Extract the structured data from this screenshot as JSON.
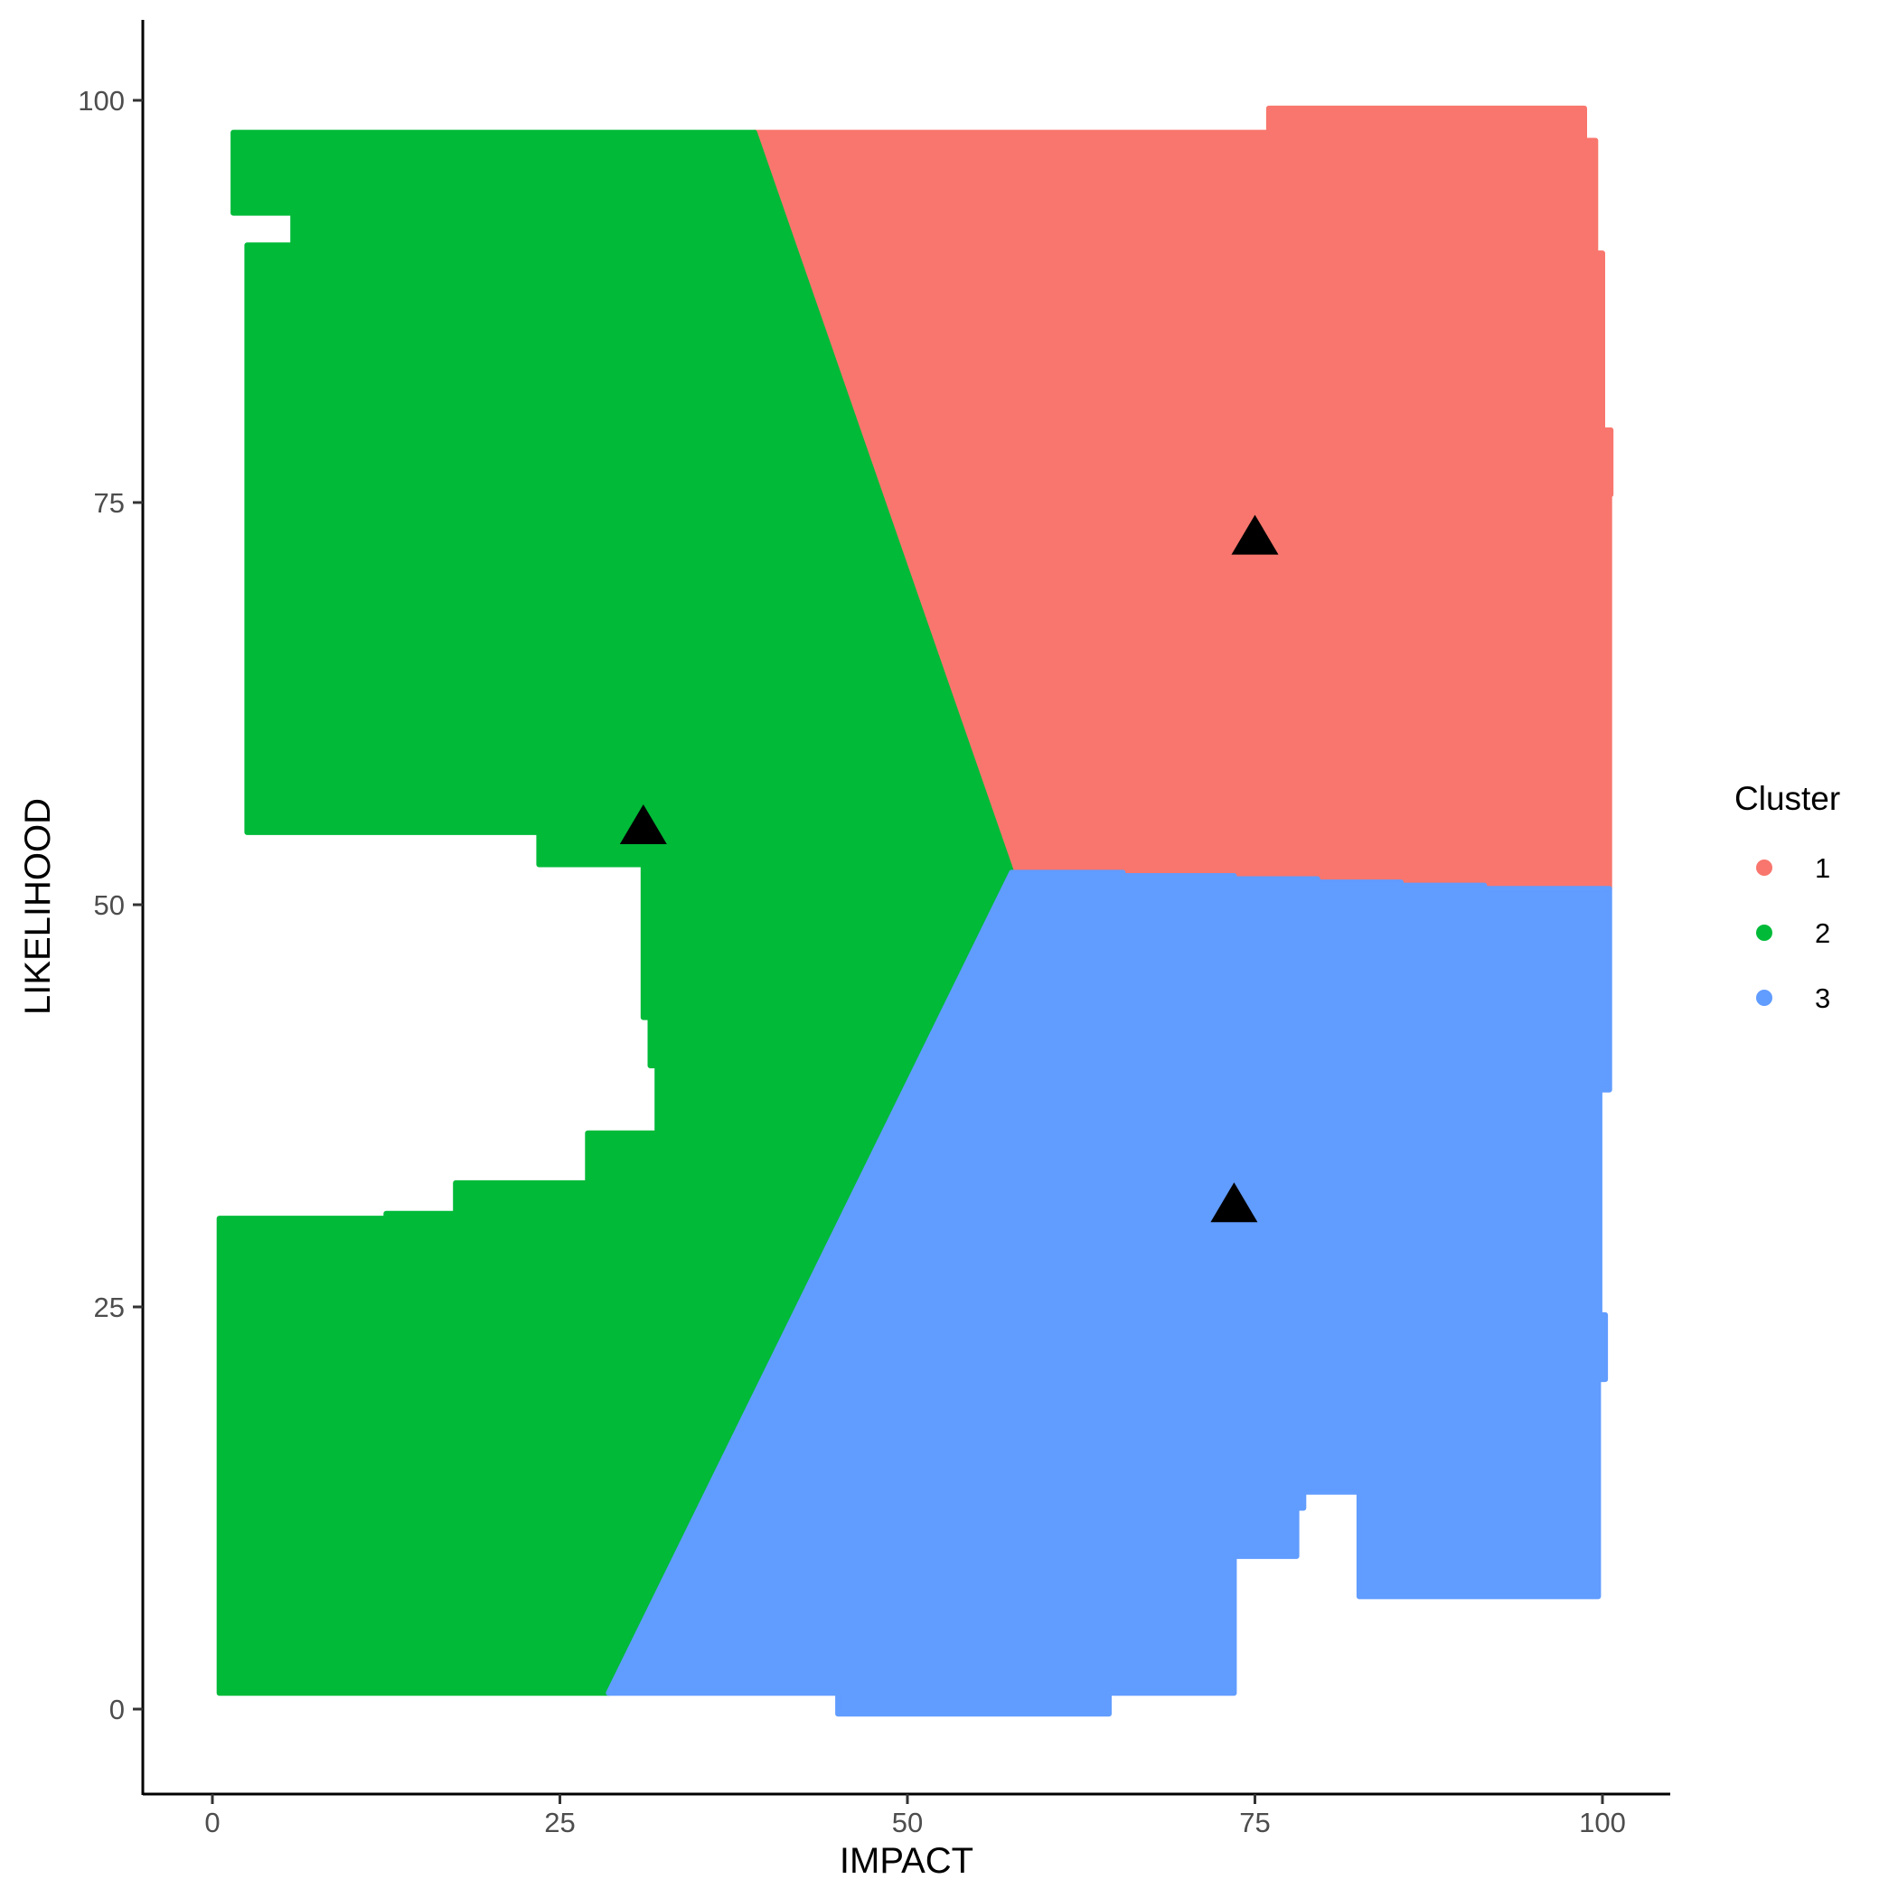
{
  "chart_data": {
    "type": "scatter",
    "xlabel": "IMPACT",
    "ylabel": "LIKELIHOOD",
    "xlim": [
      -5,
      105
    ],
    "ylim": [
      -4.5,
      105
    ],
    "xticks": [
      0,
      25,
      50,
      75,
      100
    ],
    "yticks": [
      0,
      25,
      50,
      75,
      100
    ],
    "grid": false,
    "legend": {
      "title": "Cluster",
      "placement": "right"
    },
    "series": [
      {
        "name": "1",
        "color": "#F8766D",
        "regions": [
          {
            "polygon": [
              [
                39.0,
                98.0
              ],
              [
                76.0,
                98.0
              ],
              [
                76.0,
                99.5
              ],
              [
                98.7,
                99.5
              ],
              [
                98.7,
                97.5
              ],
              [
                99.5,
                97.5
              ],
              [
                99.5,
                90.5
              ],
              [
                100.0,
                90.5
              ],
              [
                100.0,
                79.5
              ],
              [
                100.6,
                79.5
              ],
              [
                100.6,
                75.5
              ],
              [
                100.5,
                75.5
              ],
              [
                100.5,
                51.0
              ],
              [
                91.5,
                51.0
              ],
              [
                91.5,
                51.2
              ],
              [
                85.5,
                51.2
              ],
              [
                85.5,
                51.4
              ],
              [
                79.5,
                51.4
              ],
              [
                79.5,
                51.6
              ],
              [
                73.5,
                51.6
              ],
              [
                73.5,
                51.8
              ],
              [
                65.5,
                51.8
              ],
              [
                65.5,
                52.0
              ],
              [
                57.5,
                52.0
              ]
            ]
          }
        ]
      },
      {
        "name": "2",
        "color": "#00BA38",
        "regions": [
          {
            "polygon": [
              [
                1.5,
                98.0
              ],
              [
                39.0,
                98.0
              ],
              [
                57.5,
                52.0
              ],
              [
                28.5,
                1.0
              ],
              [
                0.5,
                1.0
              ],
              [
                0.5,
                30.5
              ],
              [
                12.5,
                30.5
              ],
              [
                12.5,
                30.8
              ],
              [
                17.5,
                30.8
              ],
              [
                17.5,
                32.7
              ],
              [
                27.0,
                32.7
              ],
              [
                27.0,
                35.8
              ],
              [
                32.0,
                35.8
              ],
              [
                32.0,
                40.0
              ],
              [
                31.5,
                40.0
              ],
              [
                31.5,
                43.0
              ],
              [
                31.0,
                43.0
              ],
              [
                31.0,
                52.5
              ],
              [
                23.5,
                52.5
              ],
              [
                23.5,
                54.5
              ],
              [
                2.5,
                54.5
              ],
              [
                2.5,
                91.0
              ],
              [
                5.8,
                91.0
              ],
              [
                5.8,
                93.0
              ],
              [
                1.5,
                93.0
              ]
            ]
          }
        ]
      },
      {
        "name": "3",
        "color": "#619CFF",
        "regions": [
          {
            "polygon": [
              [
                57.5,
                52.0
              ],
              [
                65.5,
                52.0
              ],
              [
                65.5,
                51.8
              ],
              [
                73.5,
                51.8
              ],
              [
                73.5,
                51.6
              ],
              [
                79.5,
                51.6
              ],
              [
                79.5,
                51.4
              ],
              [
                85.5,
                51.4
              ],
              [
                85.5,
                51.2
              ],
              [
                91.5,
                51.2
              ],
              [
                91.5,
                51.0
              ],
              [
                100.5,
                51.0
              ],
              [
                100.5,
                38.5
              ],
              [
                99.8,
                38.5
              ],
              [
                99.8,
                24.5
              ],
              [
                100.2,
                24.5
              ],
              [
                100.2,
                20.5
              ],
              [
                99.7,
                20.5
              ],
              [
                99.7,
                7.0
              ],
              [
                82.5,
                7.0
              ],
              [
                82.5,
                13.5
              ],
              [
                78.5,
                13.5
              ],
              [
                78.5,
                12.5
              ],
              [
                78.0,
                12.5
              ],
              [
                78.0,
                9.5
              ],
              [
                73.5,
                9.5
              ],
              [
                73.5,
                1.0
              ],
              [
                64.5,
                1.0
              ],
              [
                64.5,
                -0.3
              ],
              [
                45.0,
                -0.3
              ],
              [
                45.0,
                1.0
              ],
              [
                28.5,
                1.0
              ]
            ]
          }
        ]
      }
    ],
    "centroids": [
      {
        "cluster": "1",
        "x": 75.0,
        "y": 73.0
      },
      {
        "cluster": "2",
        "x": 31.0,
        "y": 55.0
      },
      {
        "cluster": "3",
        "x": 73.5,
        "y": 31.5
      }
    ]
  }
}
